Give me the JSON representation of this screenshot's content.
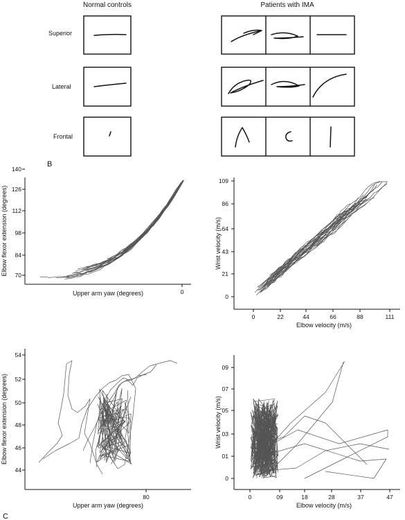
{
  "panel_b": {
    "label": "B",
    "header_controls": "Normal controls",
    "header_patients": "Patients with IMA",
    "rows": [
      "Superior",
      "Lateral",
      "Frontal"
    ]
  },
  "panel_c": {
    "label": "C"
  },
  "chart_data": [
    {
      "id": "top-left",
      "type": "line",
      "xlabel": "Upper arm yaw (degrees)",
      "ylabel": "Elbow flexor extension (degrees)",
      "x_ticks": [
        "0"
      ],
      "y_ticks": [
        "70",
        "84",
        "98",
        "112",
        "126",
        "140"
      ],
      "xlim": [
        -100,
        5
      ],
      "ylim": [
        60,
        148
      ],
      "description_values": {
        "curve_start": [
          -97,
          70
        ],
        "curve_end": [
          -3,
          143
        ]
      }
    },
    {
      "id": "top-right",
      "type": "line",
      "xlabel": "Elbow velocity (m/s)",
      "ylabel": "Wrist velocity (m/s)",
      "x_ticks": [
        "0",
        "22",
        "44",
        "66",
        "88",
        "111"
      ],
      "y_ticks": [
        "0",
        "21",
        "43",
        "64",
        "86",
        "109"
      ],
      "xlim": [
        -5,
        122
      ],
      "ylim": [
        -8,
        112
      ],
      "description_values": {
        "curve_start": [
          2,
          3
        ],
        "curve_end": [
          110,
          108
        ]
      }
    },
    {
      "id": "bottom-left",
      "type": "line",
      "xlabel": "Upper arm yaw (degrees)",
      "ylabel": "Elbow flexor extension (degrees)",
      "x_ticks": [
        "80"
      ],
      "y_ticks": [
        "44",
        "46",
        "48",
        "50",
        "52",
        "54"
      ],
      "xlim": [
        25,
        97
      ],
      "ylim": [
        42,
        54.5
      ]
    },
    {
      "id": "bottom-right",
      "type": "line",
      "xlabel": "Elbow velocity (m/s)",
      "ylabel": "Wrist velocity (m/s)",
      "x_ticks": [
        "0",
        "09",
        "18",
        "28",
        "37",
        "47"
      ],
      "y_ticks": [
        "0",
        "01",
        "03",
        "05",
        "07",
        "09"
      ],
      "xlim": [
        -3,
        52
      ],
      "ylim": [
        -0.3,
        10.5
      ]
    }
  ]
}
